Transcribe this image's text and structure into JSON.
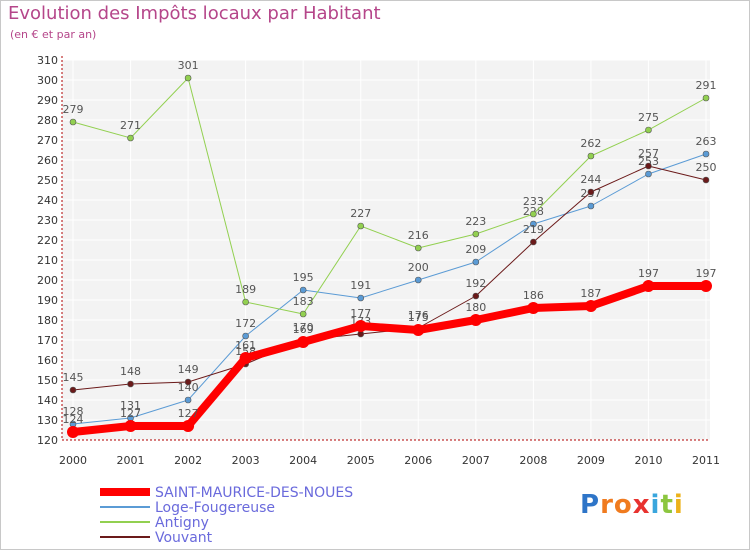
{
  "chart_data": {
    "type": "line",
    "title": "Evolution des Impôts locaux par Habitant",
    "subtitle": "(en € et par an)",
    "xlabel": "",
    "ylabel": "",
    "ylim": [
      120,
      310
    ],
    "ytick_step": 10,
    "grid": true,
    "categories": [
      "2000",
      "2001",
      "2002",
      "2003",
      "2004",
      "2005",
      "2006",
      "2007",
      "2008",
      "2009",
      "2010",
      "2011"
    ],
    "series": [
      {
        "name": "SAINT-MAURICE-DES-NOUES",
        "color": "#ff0000",
        "width": 8,
        "values": [
          124,
          127,
          127,
          161,
          169,
          177,
          175,
          180,
          186,
          187,
          197,
          197
        ]
      },
      {
        "name": "Loge-Fougereuse",
        "color": "#5b9bd5",
        "width": 1,
        "values": [
          128,
          131,
          140,
          172,
          195,
          191,
          200,
          209,
          228,
          237,
          253,
          263
        ]
      },
      {
        "name": "Antigny",
        "color": "#92d050",
        "width": 1,
        "values": [
          279,
          271,
          301,
          189,
          183,
          227,
          216,
          223,
          233,
          262,
          275,
          291
        ]
      },
      {
        "name": "Vouvant",
        "color": "#6b1a1a",
        "width": 1,
        "values": [
          145,
          148,
          149,
          158,
          170,
          173,
          176,
          192,
          219,
          244,
          257,
          250
        ]
      }
    ]
  },
  "logo": {
    "letters": [
      "P",
      "r",
      "o",
      "x",
      "i",
      "t",
      "i"
    ],
    "colors": [
      "#2e75c8",
      "#f07b1f",
      "#f07b1f",
      "#e8322f",
      "#3aa6dd",
      "#8cc63f",
      "#ecb21a"
    ]
  }
}
